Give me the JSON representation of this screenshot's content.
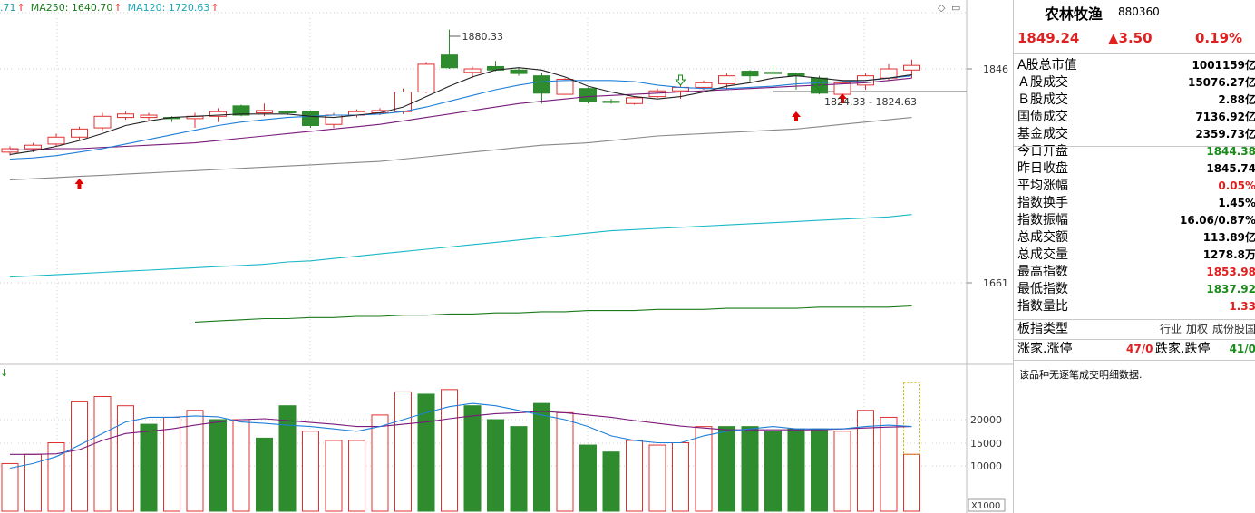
{
  "legend": {
    "ma_prev": ".71",
    "ma250": "MA250: 1640.70",
    "ma120": "MA120: 1720.63",
    "arrow": "↑"
  },
  "chart_labels": {
    "high_label": "1880.33",
    "range_label": "1824.33 - 1824.63",
    "axis_upper": "1846",
    "axis_lower": "1661",
    "vol_20000": "20000",
    "vol_15000": "15000",
    "vol_10000": "10000",
    "vol_unit": "X1000",
    "vol_indicator": "↓"
  },
  "colors": {
    "up": "#e03030",
    "down": "#2e8b2e",
    "ma5": "#222222",
    "ma10": "#1e7fd8",
    "ma20": "#7a1a7a",
    "ma60": "#888888",
    "ma120": "#1ab8c8",
    "ma250": "#1a7a1a",
    "grid": "#d0d0d0"
  },
  "chart_data": [
    {
      "type": "candlestick",
      "title": "",
      "y_axis_ticks": [
        1846,
        1661
      ],
      "candles": [
        {
          "o": 1774,
          "c": 1777,
          "h": 1779,
          "l": 1771
        },
        {
          "o": 1777,
          "c": 1780,
          "h": 1782,
          "l": 1774
        },
        {
          "o": 1781,
          "c": 1787,
          "h": 1790,
          "l": 1779
        },
        {
          "o": 1787,
          "c": 1794,
          "h": 1796,
          "l": 1785
        },
        {
          "o": 1795,
          "c": 1805,
          "h": 1808,
          "l": 1793
        },
        {
          "o": 1804,
          "c": 1807,
          "h": 1809,
          "l": 1802
        },
        {
          "o": 1804,
          "c": 1806,
          "h": 1808,
          "l": 1801
        },
        {
          "o": 1804,
          "c": 1803,
          "h": 1805,
          "l": 1800
        },
        {
          "o": 1803,
          "c": 1805,
          "h": 1808,
          "l": 1795
        },
        {
          "o": 1805,
          "c": 1809,
          "h": 1812,
          "l": 1800
        },
        {
          "o": 1814,
          "c": 1806,
          "h": 1815,
          "l": 1805
        },
        {
          "o": 1808,
          "c": 1810,
          "h": 1816,
          "l": 1805
        },
        {
          "o": 1809,
          "c": 1808,
          "h": 1810,
          "l": 1806
        },
        {
          "o": 1809,
          "c": 1797,
          "h": 1810,
          "l": 1795
        },
        {
          "o": 1798,
          "c": 1806,
          "h": 1808,
          "l": 1795
        },
        {
          "o": 1806,
          "c": 1809,
          "h": 1811,
          "l": 1804
        },
        {
          "o": 1808,
          "c": 1810,
          "h": 1812,
          "l": 1806
        },
        {
          "o": 1809,
          "c": 1826,
          "h": 1829,
          "l": 1807
        },
        {
          "o": 1826,
          "c": 1850,
          "h": 1852,
          "l": 1825
        },
        {
          "o": 1858,
          "c": 1847,
          "h": 1880,
          "l": 1846
        },
        {
          "o": 1843,
          "c": 1846,
          "h": 1848,
          "l": 1838
        },
        {
          "o": 1848,
          "c": 1845,
          "h": 1853,
          "l": 1844
        },
        {
          "o": 1845,
          "c": 1842,
          "h": 1847,
          "l": 1840
        },
        {
          "o": 1840,
          "c": 1825,
          "h": 1843,
          "l": 1816
        },
        {
          "o": 1824,
          "c": 1837,
          "h": 1838,
          "l": 1824
        },
        {
          "o": 1829,
          "c": 1818,
          "h": 1830,
          "l": 1816
        },
        {
          "o": 1818,
          "c": 1817,
          "h": 1820,
          "l": 1816
        },
        {
          "o": 1816,
          "c": 1821,
          "h": 1822,
          "l": 1815
        },
        {
          "o": 1822,
          "c": 1827,
          "h": 1829,
          "l": 1821
        },
        {
          "o": 1827,
          "c": 1830,
          "h": 1832,
          "l": 1820
        },
        {
          "o": 1830,
          "c": 1834,
          "h": 1836,
          "l": 1828
        },
        {
          "o": 1833,
          "c": 1840,
          "h": 1842,
          "l": 1828
        },
        {
          "o": 1844,
          "c": 1840,
          "h": 1845,
          "l": 1835
        },
        {
          "o": 1843,
          "c": 1842,
          "h": 1849,
          "l": 1839
        },
        {
          "o": 1842,
          "c": 1840,
          "h": 1843,
          "l": 1828
        },
        {
          "o": 1838,
          "c": 1825,
          "h": 1840,
          "l": 1824
        },
        {
          "o": 1824,
          "c": 1834,
          "h": 1836,
          "l": 1823
        },
        {
          "o": 1832,
          "c": 1840,
          "h": 1842,
          "l": 1828
        },
        {
          "o": 1838,
          "c": 1846,
          "h": 1850,
          "l": 1836
        },
        {
          "o": 1845,
          "c": 1849,
          "h": 1854,
          "l": 1838
        }
      ],
      "ma5": [
        1772,
        1775,
        1779,
        1784,
        1790,
        1797,
        1801,
        1804,
        1805,
        1806,
        1807,
        1807,
        1807,
        1805,
        1804,
        1806,
        1808,
        1813,
        1822,
        1831,
        1839,
        1845,
        1847,
        1845,
        1839,
        1831,
        1826,
        1822,
        1820,
        1822,
        1826,
        1831,
        1834,
        1838,
        1840,
        1838,
        1836,
        1836,
        1838,
        1841
      ],
      "ma10": [
        1768,
        1769,
        1771,
        1774,
        1777,
        1781,
        1785,
        1789,
        1793,
        1797,
        1800,
        1802,
        1804,
        1805,
        1806,
        1806,
        1807,
        1809,
        1813,
        1818,
        1823,
        1828,
        1832,
        1835,
        1836,
        1836,
        1836,
        1835,
        1832,
        1830,
        1829,
        1829,
        1830,
        1831,
        1833,
        1834,
        1835,
        1836,
        1838,
        1840
      ],
      "ma20": [
        1776,
        1776,
        1777,
        1777,
        1778,
        1779,
        1780,
        1781,
        1782,
        1784,
        1786,
        1788,
        1790,
        1792,
        1794,
        1796,
        1798,
        1801,
        1804,
        1807,
        1810,
        1813,
        1816,
        1818,
        1820,
        1822,
        1823,
        1824,
        1825,
        1826,
        1827,
        1828,
        1829,
        1830,
        1831,
        1832,
        1833,
        1834,
        1836,
        1838
      ],
      "ma60": [
        1750,
        1751,
        1752,
        1753,
        1754,
        1755,
        1756,
        1757,
        1758,
        1759,
        1760,
        1761,
        1762,
        1763,
        1764,
        1765,
        1766,
        1768,
        1770,
        1772,
        1774,
        1776,
        1778,
        1780,
        1781,
        1782,
        1784,
        1786,
        1788,
        1789,
        1790,
        1791,
        1792,
        1793,
        1794,
        1796,
        1798,
        1800,
        1802,
        1804
      ],
      "ma120": [
        1666,
        1667,
        1668,
        1669,
        1670,
        1671,
        1672,
        1673,
        1674,
        1675,
        1676,
        1677,
        1679,
        1680,
        1682,
        1684,
        1686,
        1688,
        1690,
        1692,
        1694,
        1696,
        1698,
        1700,
        1702,
        1704,
        1706,
        1707,
        1708,
        1709,
        1710,
        1711,
        1712,
        1713,
        1714,
        1715,
        1716,
        1717,
        1718,
        1720
      ],
      "ma250": [
        null,
        null,
        null,
        null,
        null,
        null,
        null,
        null,
        1627,
        1628,
        1629,
        1630,
        1630,
        1631,
        1631,
        1632,
        1632,
        1633,
        1633,
        1634,
        1634,
        1635,
        1635,
        1636,
        1636,
        1637,
        1637,
        1637,
        1638,
        1638,
        1638,
        1639,
        1639,
        1639,
        1639,
        1640,
        1640,
        1640,
        1640,
        1641
      ]
    },
    {
      "type": "bar",
      "title": "Volume (X1000)",
      "y_axis_ticks": [
        20000,
        15000,
        10000
      ],
      "volumes": [
        10500,
        12500,
        15000,
        24000,
        25000,
        23000,
        19000,
        20500,
        22000,
        20000,
        20000,
        16000,
        23000,
        17500,
        15500,
        15500,
        21000,
        26000,
        25500,
        26500,
        23000,
        20000,
        18500,
        23500,
        21500,
        14500,
        13000,
        15500,
        14500,
        15000,
        18500,
        18500,
        18500,
        17500,
        18000,
        18000,
        17500,
        22000,
        20500,
        12500
      ],
      "directions": [
        "up",
        "up",
        "up",
        "up",
        "up",
        "up",
        "down",
        "up",
        "up",
        "down",
        "up",
        "down",
        "down",
        "up",
        "up",
        "up",
        "up",
        "up",
        "down",
        "up",
        "down",
        "down",
        "down",
        "down",
        "up",
        "down",
        "down",
        "up",
        "up",
        "up",
        "up",
        "down",
        "down",
        "down",
        "down",
        "down",
        "up",
        "up",
        "up",
        "up"
      ],
      "vol_ma_blue": [
        9500,
        10500,
        12000,
        14500,
        17000,
        19500,
        20500,
        20500,
        20800,
        20600,
        19500,
        19200,
        18800,
        18500,
        18000,
        17500,
        18500,
        20000,
        21500,
        22800,
        23500,
        23000,
        22000,
        21000,
        20000,
        18500,
        16500,
        15500,
        15000,
        15000,
        16500,
        17500,
        18000,
        18500,
        18000,
        18000,
        18000,
        18500,
        18800,
        18500
      ],
      "vol_ma_purple": [
        12500,
        12500,
        12600,
        13500,
        15500,
        17000,
        17500,
        18000,
        18800,
        19500,
        20000,
        20200,
        19800,
        19400,
        19000,
        18500,
        18500,
        19000,
        19500,
        20200,
        20800,
        21300,
        21500,
        21800,
        21500,
        21000,
        20500,
        19800,
        19200,
        18600,
        18200,
        17800,
        17800,
        17800,
        17800,
        17800,
        18000,
        18200,
        18400,
        18500
      ]
    }
  ],
  "panel": {
    "name": "农林牧渔",
    "code": "880360",
    "price": "1849.24",
    "change": "▲3.50",
    "pct": "0.19%",
    "rows": [
      {
        "label": "A股总市值",
        "value": "1001159亿",
        "color": "black"
      },
      {
        "label": "Ａ股成交",
        "value": "15076.27亿",
        "color": "black"
      },
      {
        "label": "Ｂ股成交",
        "value": "2.88亿",
        "color": "black"
      },
      {
        "label": "国债成交",
        "value": "7136.92亿",
        "color": "black"
      },
      {
        "label": "基金成交",
        "value": "2359.73亿",
        "color": "black"
      },
      {
        "label": "今日开盘",
        "value": "1844.38",
        "color": "green"
      },
      {
        "label": "昨日收盘",
        "value": "1845.74",
        "color": "black"
      },
      {
        "label": "平均涨幅",
        "value": "0.05%",
        "color": "red"
      },
      {
        "label": "指数换手",
        "value": "1.45%",
        "color": "black"
      },
      {
        "label": "指数振幅",
        "value": "16.06/0.87%",
        "color": "black"
      },
      {
        "label": "总成交额",
        "value": "113.89亿",
        "color": "black"
      },
      {
        "label": "总成交量",
        "value": "1278.8万",
        "color": "black"
      },
      {
        "label": "最高指数",
        "value": "1853.98",
        "color": "red"
      },
      {
        "label": "最低指数",
        "value": "1837.92",
        "color": "green"
      },
      {
        "label": "指数量比",
        "value": "1.33",
        "color": "red"
      }
    ],
    "type_label": "板指类型",
    "type_tags": [
      "行业",
      "加权",
      "成份股国"
    ],
    "updown": {
      "up_label": "涨家.涨停",
      "up_value": "47/0",
      "down_label": "跌家.跌停",
      "down_value": "41/0"
    },
    "note": "该品种无逐笔成交明细数据."
  }
}
